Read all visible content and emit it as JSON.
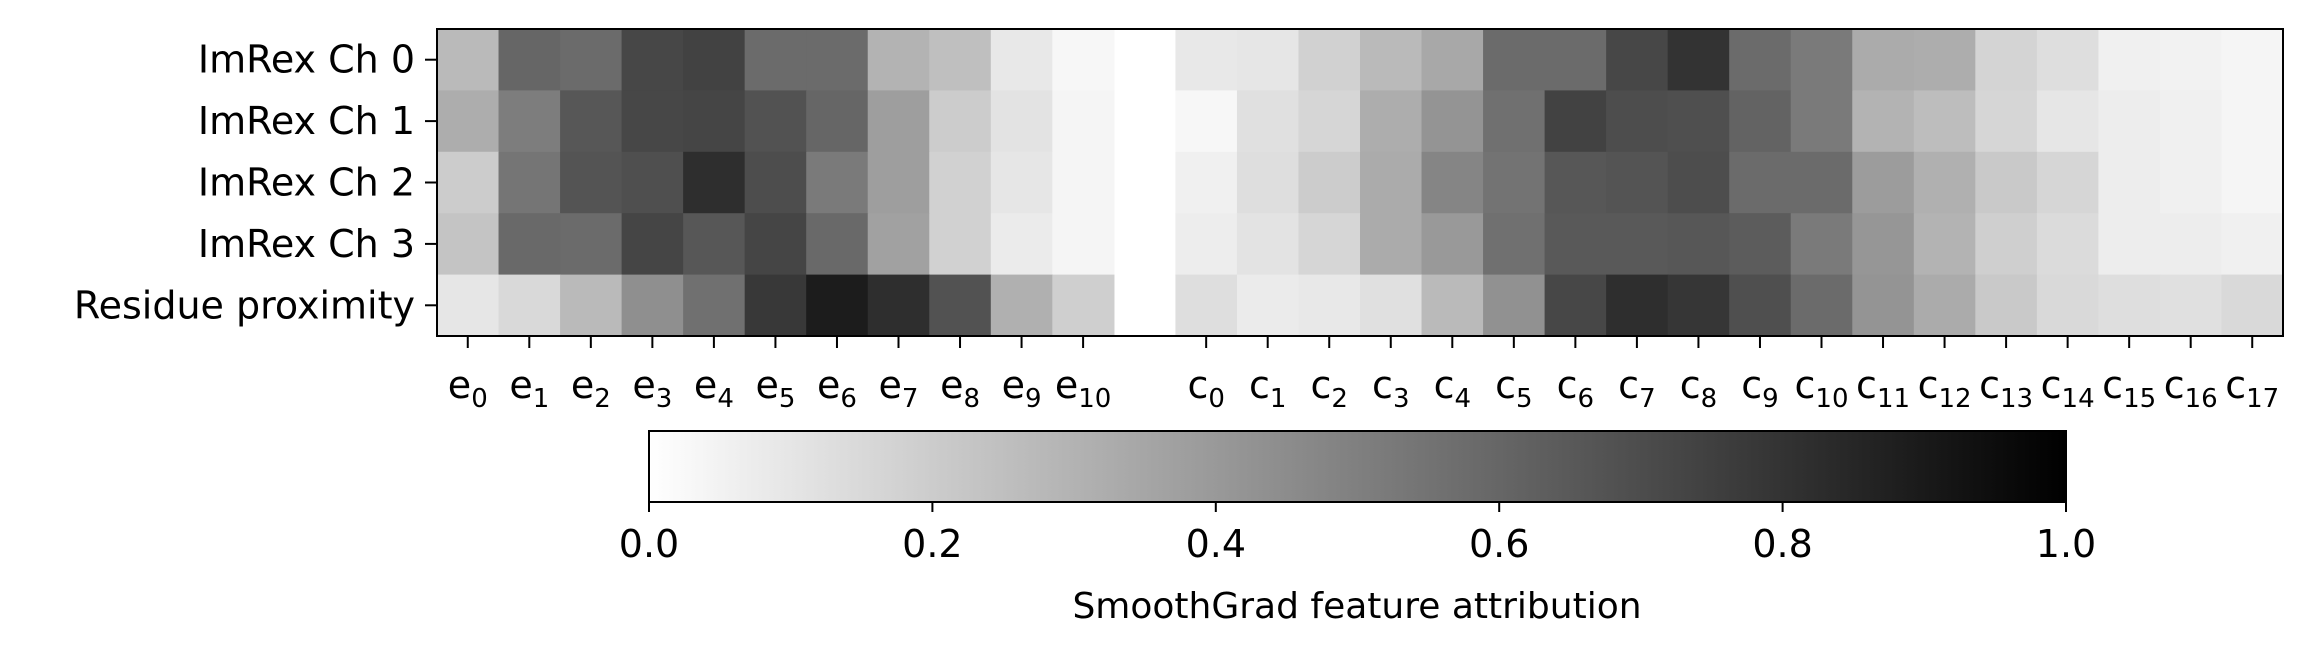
{
  "chart_data": {
    "type": "heatmap",
    "title": "",
    "colormap": "gray_r",
    "rows": [
      "ImRex Ch 0",
      "ImRex Ch 1",
      "ImRex Ch 2",
      "ImRex Ch 3",
      "Residue proximity"
    ],
    "columns": [
      {
        "base": "e",
        "sub": "0"
      },
      {
        "base": "e",
        "sub": "1"
      },
      {
        "base": "e",
        "sub": "2"
      },
      {
        "base": "e",
        "sub": "3"
      },
      {
        "base": "e",
        "sub": "4"
      },
      {
        "base": "e",
        "sub": "5"
      },
      {
        "base": "e",
        "sub": "6"
      },
      {
        "base": "e",
        "sub": "7"
      },
      {
        "base": "e",
        "sub": "8"
      },
      {
        "base": "e",
        "sub": "9"
      },
      {
        "base": "e",
        "sub": "10"
      },
      null,
      {
        "base": "c",
        "sub": "0"
      },
      {
        "base": "c",
        "sub": "1"
      },
      {
        "base": "c",
        "sub": "2"
      },
      {
        "base": "c",
        "sub": "3"
      },
      {
        "base": "c",
        "sub": "4"
      },
      {
        "base": "c",
        "sub": "5"
      },
      {
        "base": "c",
        "sub": "6"
      },
      {
        "base": "c",
        "sub": "7"
      },
      {
        "base": "c",
        "sub": "8"
      },
      {
        "base": "c",
        "sub": "9"
      },
      {
        "base": "c",
        "sub": "10"
      },
      {
        "base": "c",
        "sub": "11"
      },
      {
        "base": "c",
        "sub": "12"
      },
      {
        "base": "c",
        "sub": "13"
      },
      {
        "base": "c",
        "sub": "14"
      },
      {
        "base": "c",
        "sub": "15"
      },
      {
        "base": "c",
        "sub": "16"
      },
      {
        "base": "c",
        "sub": "17"
      }
    ],
    "values": [
      [
        0.27,
        0.6,
        0.58,
        0.72,
        0.74,
        0.58,
        0.58,
        0.3,
        0.25,
        0.09,
        0.03,
        null,
        0.09,
        0.1,
        0.18,
        0.27,
        0.34,
        0.58,
        0.58,
        0.72,
        0.8,
        0.58,
        0.52,
        0.33,
        0.32,
        0.17,
        0.13,
        0.06,
        0.05,
        0.04
      ],
      [
        0.32,
        0.51,
        0.66,
        0.72,
        0.73,
        0.68,
        0.6,
        0.38,
        0.2,
        0.11,
        0.04,
        null,
        0.03,
        0.12,
        0.16,
        0.32,
        0.42,
        0.56,
        0.74,
        0.7,
        0.69,
        0.61,
        0.52,
        0.3,
        0.26,
        0.16,
        0.1,
        0.07,
        0.06,
        0.04
      ],
      [
        0.2,
        0.54,
        0.67,
        0.69,
        0.82,
        0.7,
        0.52,
        0.38,
        0.18,
        0.1,
        0.04,
        null,
        0.06,
        0.13,
        0.2,
        0.33,
        0.48,
        0.55,
        0.66,
        0.67,
        0.7,
        0.58,
        0.58,
        0.39,
        0.31,
        0.21,
        0.16,
        0.07,
        0.06,
        0.04
      ],
      [
        0.23,
        0.59,
        0.58,
        0.73,
        0.66,
        0.73,
        0.59,
        0.37,
        0.18,
        0.08,
        0.04,
        null,
        0.07,
        0.11,
        0.16,
        0.33,
        0.4,
        0.56,
        0.65,
        0.65,
        0.66,
        0.64,
        0.52,
        0.41,
        0.3,
        0.19,
        0.14,
        0.07,
        0.07,
        0.06
      ],
      [
        0.1,
        0.15,
        0.27,
        0.44,
        0.56,
        0.78,
        0.89,
        0.82,
        0.68,
        0.31,
        0.19,
        null,
        0.13,
        0.08,
        0.09,
        0.12,
        0.27,
        0.43,
        0.72,
        0.82,
        0.79,
        0.69,
        0.58,
        0.42,
        0.33,
        0.21,
        0.15,
        0.13,
        0.12,
        0.15
      ]
    ],
    "colorbar": {
      "label": "SmoothGrad feature attribution",
      "ticks": [
        "0.0",
        "0.2",
        "0.4",
        "0.6",
        "0.8",
        "1.0"
      ],
      "range": [
        0,
        1
      ]
    }
  }
}
